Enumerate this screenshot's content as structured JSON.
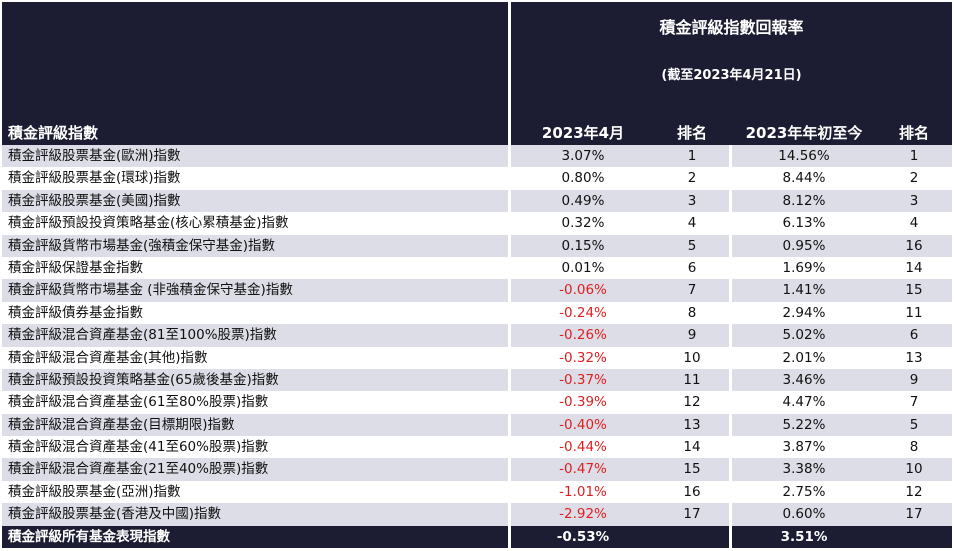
{
  "header": {
    "title": "積金評級指數回報率",
    "subtitle": "(截至2023年4月21日)",
    "col_name": "積金評級指數",
    "col_apr": "2023年4月",
    "col_rank1": "排名",
    "col_ytd": "2023年年初至今",
    "col_rank2": "排名"
  },
  "rows": [
    {
      "name": "積金評級股票基金(歐洲)指數",
      "apr": "3.07%",
      "rank1": "1",
      "ytd": "14.56%",
      "rank2": "1"
    },
    {
      "name": "積金評級股票基金(環球)指數",
      "apr": "0.80%",
      "rank1": "2",
      "ytd": "8.44%",
      "rank2": "2"
    },
    {
      "name": "積金評級股票基金(美國)指數",
      "apr": "0.49%",
      "rank1": "3",
      "ytd": "8.12%",
      "rank2": "3"
    },
    {
      "name": "積金評級預設投資策略基金(核心累積基金)指數",
      "apr": "0.32%",
      "rank1": "4",
      "ytd": "6.13%",
      "rank2": "4"
    },
    {
      "name": "積金評級貨幣市場基金(強積金保守基金)指數",
      "apr": "0.15%",
      "rank1": "5",
      "ytd": "0.95%",
      "rank2": "16"
    },
    {
      "name": "積金評級保證基金指數",
      "apr": "0.01%",
      "rank1": "6",
      "ytd": "1.69%",
      "rank2": "14"
    },
    {
      "name": "積金評級貨幣市場基金 (非強積金保守基金)指數",
      "apr": "-0.06%",
      "rank1": "7",
      "ytd": "1.41%",
      "rank2": "15"
    },
    {
      "name": "積金評級債券基金指數",
      "apr": "-0.24%",
      "rank1": "8",
      "ytd": "2.94%",
      "rank2": "11"
    },
    {
      "name": "積金評級混合資產基金(81至100%股票)指數",
      "apr": "-0.26%",
      "rank1": "9",
      "ytd": "5.02%",
      "rank2": "6"
    },
    {
      "name": "積金評級混合資產基金(其他)指數",
      "apr": "-0.32%",
      "rank1": "10",
      "ytd": "2.01%",
      "rank2": "13"
    },
    {
      "name": "積金評級預設投資策略基金(65歲後基金)指數",
      "apr": "-0.37%",
      "rank1": "11",
      "ytd": "3.46%",
      "rank2": "9"
    },
    {
      "name": "積金評級混合資產基金(61至80%股票)指數",
      "apr": "-0.39%",
      "rank1": "12",
      "ytd": "4.47%",
      "rank2": "7"
    },
    {
      "name": "積金評級混合資產基金(目標期限)指數",
      "apr": "-0.40%",
      "rank1": "13",
      "ytd": "5.22%",
      "rank2": "5"
    },
    {
      "name": "積金評級混合資產基金(41至60%股票)指數",
      "apr": "-0.44%",
      "rank1": "14",
      "ytd": "3.87%",
      "rank2": "8"
    },
    {
      "name": "積金評級混合資產基金(21至40%股票)指數",
      "apr": "-0.47%",
      "rank1": "15",
      "ytd": "3.38%",
      "rank2": "10"
    },
    {
      "name": "積金評級股票基金(亞洲)指數",
      "apr": "-1.01%",
      "rank1": "16",
      "ytd": "2.75%",
      "rank2": "12"
    },
    {
      "name": "積金評級股票基金(香港及中國)指數",
      "apr": "-2.92%",
      "rank1": "17",
      "ytd": "0.60%",
      "rank2": "17"
    }
  ],
  "footer": {
    "name": "積金評級所有基金表現指數",
    "apr": "-0.53%",
    "ytd": "3.51%"
  },
  "colors": {
    "header_bg": "#1c1d33",
    "band": "#dcdde6",
    "negative": "#e02020"
  }
}
